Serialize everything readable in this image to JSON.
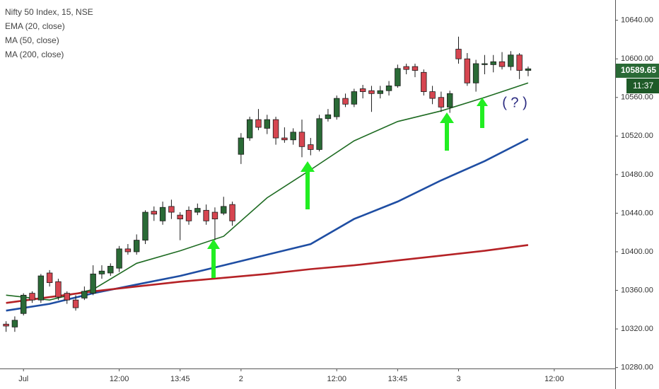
{
  "chart_data": {
    "type": "candlestick",
    "title": "Nifty 50 Index, 15, NSE",
    "annotation": "( ? )",
    "countdown": "11:37",
    "x": [
      0,
      1,
      2,
      3,
      4,
      5,
      6,
      7,
      8,
      9,
      10,
      11,
      12,
      13,
      14,
      15,
      16,
      17,
      18,
      19,
      20,
      21,
      22,
      23,
      24,
      25,
      26,
      27,
      28,
      29,
      30,
      31,
      32,
      33,
      34,
      35,
      36,
      37,
      38,
      39,
      40,
      41,
      42,
      43,
      44,
      45,
      46,
      47,
      48,
      49,
      50,
      51,
      52,
      53,
      54,
      55,
      56,
      57,
      58,
      59,
      60
    ],
    "candles": {
      "open": [
        10325,
        10322,
        10336,
        10357,
        10350,
        10378,
        10369,
        10357,
        10350,
        10352,
        10357,
        10377,
        10378,
        10383,
        10403,
        10400,
        10412,
        10442,
        10432,
        10447,
        10438,
        10443,
        10441,
        10443,
        10441,
        10440,
        10449,
        10501,
        10518,
        10537,
        10528,
        10537,
        10518,
        10516,
        10524,
        10511,
        10506,
        10538,
        10540,
        10559,
        10553,
        10569,
        10567,
        10564,
        10567,
        10572,
        10592,
        10592,
        10586,
        10566,
        10560,
        10550,
        10610,
        10600,
        10575,
        10594,
        10594,
        10597,
        10592,
        10604,
        10588
      ],
      "high": [
        10328,
        10333,
        10357,
        10359,
        10377,
        10381,
        10372,
        10359,
        10355,
        10364,
        10386,
        10386,
        10388,
        10406,
        10408,
        10418,
        10443,
        10447,
        10452,
        10454,
        10441,
        10447,
        10450,
        10449,
        10446,
        10457,
        10452,
        10523,
        10540,
        10548,
        10542,
        10540,
        10529,
        10528,
        10537,
        10518,
        10542,
        10548,
        10562,
        10564,
        10569,
        10573,
        10572,
        10572,
        10577,
        10594,
        10595,
        10595,
        10589,
        10572,
        10566,
        10567,
        10623,
        10606,
        10599,
        10604,
        10604,
        10607,
        10608,
        10606,
        10592
      ],
      "low": [
        10317,
        10317,
        10334,
        10347,
        10347,
        10364,
        10350,
        10346,
        10339,
        10350,
        10355,
        10372,
        10375,
        10379,
        10397,
        10397,
        10408,
        10432,
        10428,
        10434,
        10412,
        10428,
        10438,
        10428,
        10412,
        10438,
        10427,
        10491,
        10515,
        10526,
        10522,
        10511,
        10513,
        10511,
        10498,
        10500,
        10504,
        10535,
        10537,
        10550,
        10550,
        10559,
        10545,
        10559,
        10562,
        10570,
        10584,
        10581,
        10562,
        10553,
        10545,
        10544,
        10595,
        10572,
        10566,
        10584,
        10586,
        10589,
        10588,
        10579,
        10582
      ],
      "close": [
        10323,
        10329,
        10355,
        10350,
        10375,
        10368,
        10353,
        10350,
        10342,
        10359,
        10377,
        10380,
        10385,
        10403,
        10400,
        10412,
        10441,
        10439,
        10446,
        10441,
        10434,
        10432,
        10445,
        10432,
        10434,
        10447,
        10432,
        10518,
        10537,
        10529,
        10537,
        10518,
        10516,
        10524,
        10509,
        10506,
        10538,
        10542,
        10559,
        10553,
        10566,
        10566,
        10564,
        10567,
        10572,
        10590,
        10589,
        10588,
        10566,
        10559,
        10550,
        10564,
        10600,
        10575,
        10595,
        10595,
        10597,
        10592,
        10604,
        10588,
        10589.65
      ]
    },
    "up_color": "#2a6a36",
    "down_color": "#d64550",
    "series": [
      {
        "name": "EMA (20, close)",
        "color": "#1e6b22",
        "x": [
          0,
          5,
          10,
          15,
          20,
          25,
          30,
          35,
          40,
          45,
          50,
          55,
          60
        ],
        "values": [
          10355,
          10350,
          10361,
          10388,
          10401,
          10416,
          10456,
          10485,
          10515,
          10535,
          10546,
          10560,
          10575
        ]
      },
      {
        "name": "MA (50, close)",
        "color": "#1f4ea3",
        "x": [
          0,
          5,
          10,
          15,
          20,
          25,
          30,
          35,
          40,
          45,
          50,
          55,
          60
        ],
        "values": [
          10339,
          10346,
          10357,
          10366,
          10375,
          10386,
          10397,
          10408,
          10434,
          10452,
          10474,
          10494,
          10517
        ]
      },
      {
        "name": "MA (200, close)",
        "color": "#b52226",
        "x": [
          0,
          5,
          10,
          15,
          20,
          25,
          30,
          35,
          40,
          45,
          50,
          55,
          60
        ],
        "values": [
          10347,
          10353,
          10359,
          10364,
          10369,
          10373,
          10377,
          10382,
          10386,
          10391,
          10396,
          10401,
          10407
        ]
      }
    ],
    "xlim": [
      -0.7,
      70
    ],
    "ylim": [
      10279,
      10661
    ],
    "xticks": [
      {
        "value": 2,
        "label": "Jul"
      },
      {
        "value": 13,
        "label": "12:00"
      },
      {
        "value": 20,
        "label": "13:45"
      },
      {
        "value": 27,
        "label": "2"
      },
      {
        "value": 38,
        "label": "12:00"
      },
      {
        "value": 45,
        "label": "13:45"
      },
      {
        "value": 52,
        "label": "3"
      },
      {
        "value": 63,
        "label": "12:00"
      }
    ],
    "yticks": [
      {
        "value": 10280,
        "label": "10280.00"
      },
      {
        "value": 10320,
        "label": "10320.00"
      },
      {
        "value": 10360,
        "label": "10360.00"
      },
      {
        "value": 10400,
        "label": "10400.00"
      },
      {
        "value": 10440,
        "label": "10440.00"
      },
      {
        "value": 10480,
        "label": "10480.00"
      },
      {
        "value": 10520,
        "label": "10520.00"
      },
      {
        "value": 10560,
        "label": "10560.00"
      },
      {
        "value": 10600,
        "label": "10600.00"
      },
      {
        "value": 10640,
        "label": "10640.00"
      }
    ]
  }
}
